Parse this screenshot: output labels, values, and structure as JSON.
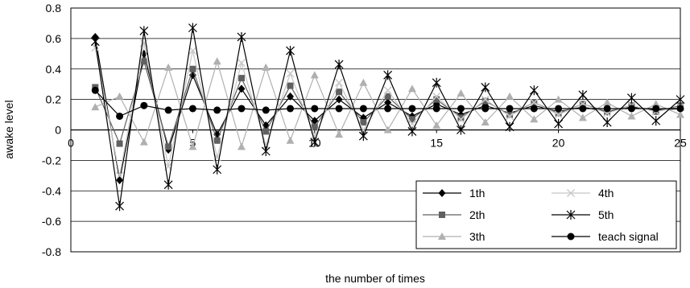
{
  "chart_data": {
    "type": "line",
    "title": "",
    "xlabel": "the number of times",
    "ylabel": "awake level",
    "xlim": [
      0,
      25
    ],
    "ylim": [
      -0.8,
      0.8
    ],
    "xticks": [
      0,
      5,
      10,
      15,
      20,
      25
    ],
    "yticks": [
      -0.8,
      -0.6,
      -0.4,
      -0.2,
      0,
      0.2,
      0.4,
      0.6,
      0.8
    ],
    "ytick_labels": [
      "-0.8",
      "-0.6",
      "-0.4",
      "-0.2",
      "0",
      "0.2",
      "0.4",
      "0.6",
      "0.8"
    ],
    "grid": "horizontal",
    "legend_position": "bottom-right",
    "x": [
      1,
      2,
      3,
      4,
      5,
      6,
      7,
      8,
      9,
      10,
      11,
      12,
      13,
      14,
      15,
      16,
      17,
      18,
      19,
      20,
      21,
      22,
      23,
      24,
      25
    ],
    "series": [
      {
        "name": "1th",
        "color": "#000000",
        "marker": "diamond",
        "values": [
          0.61,
          -0.33,
          0.5,
          -0.13,
          0.36,
          -0.03,
          0.27,
          0.03,
          0.22,
          0.06,
          0.2,
          0.08,
          0.18,
          0.09,
          0.17,
          0.1,
          0.16,
          0.11,
          0.16,
          0.12,
          0.15,
          0.12,
          0.15,
          0.13,
          0.14
        ]
      },
      {
        "name": "2th",
        "color": "#606060",
        "marker": "square",
        "values": [
          0.28,
          -0.09,
          0.45,
          -0.11,
          0.4,
          -0.07,
          0.34,
          -0.01,
          0.29,
          0.02,
          0.25,
          0.05,
          0.22,
          0.07,
          0.2,
          0.08,
          0.19,
          0.1,
          0.18,
          0.11,
          0.17,
          0.12,
          0.16,
          0.12,
          0.16
        ]
      },
      {
        "name": "3th",
        "color": "#b0b0b0",
        "marker": "triangle",
        "values": [
          0.15,
          0.22,
          -0.08,
          0.41,
          -0.11,
          0.45,
          -0.11,
          0.41,
          -0.07,
          0.36,
          -0.03,
          0.31,
          0.0,
          0.27,
          0.03,
          0.24,
          0.05,
          0.22,
          0.07,
          0.2,
          0.08,
          0.18,
          0.09,
          0.17,
          0.1
        ]
      },
      {
        "name": "4th",
        "color": "#c8c8c8",
        "marker": "x",
        "values": [
          0.54,
          -0.3,
          0.57,
          -0.24,
          0.52,
          -0.18,
          0.44,
          -0.1,
          0.37,
          -0.04,
          0.31,
          0.0,
          0.26,
          0.04,
          0.22,
          0.07,
          0.2,
          0.09,
          0.18,
          0.1,
          0.17,
          0.11,
          0.16,
          0.12,
          0.15
        ]
      },
      {
        "name": "5th",
        "color": "#000000",
        "marker": "star",
        "values": [
          0.58,
          -0.5,
          0.65,
          -0.36,
          0.67,
          -0.26,
          0.61,
          -0.14,
          0.52,
          -0.08,
          0.43,
          -0.04,
          0.36,
          -0.01,
          0.31,
          0.0,
          0.28,
          0.02,
          0.26,
          0.04,
          0.23,
          0.05,
          0.21,
          0.06,
          0.2
        ]
      },
      {
        "name": "teach signal",
        "color": "#000000",
        "marker": "circle",
        "values": [
          0.26,
          0.09,
          0.16,
          0.13,
          0.14,
          0.13,
          0.14,
          0.13,
          0.14,
          0.14,
          0.14,
          0.14,
          0.14,
          0.14,
          0.14,
          0.14,
          0.14,
          0.14,
          0.14,
          0.14,
          0.14,
          0.14,
          0.14,
          0.14,
          0.14
        ]
      }
    ]
  }
}
